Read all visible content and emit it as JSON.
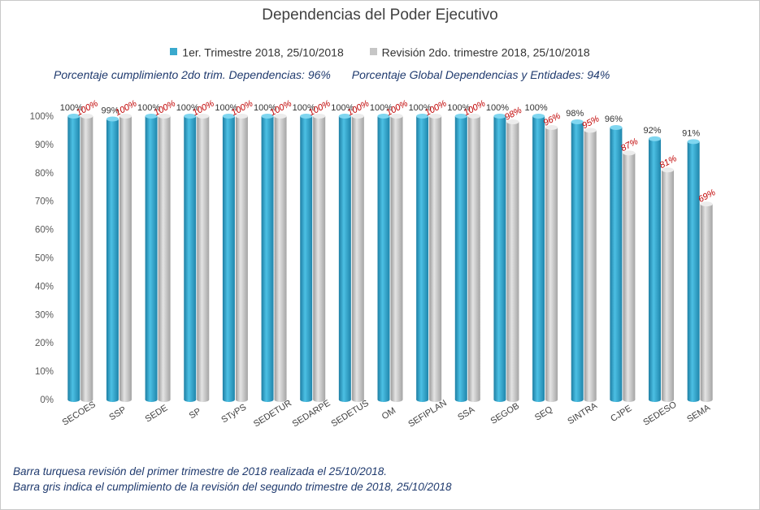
{
  "chart_data": {
    "type": "bar",
    "title": "Dependencias del Poder Ejecutivo",
    "categories": [
      "SECOES",
      "SSP",
      "SEDE",
      "SP",
      "STyPS",
      "SEDETUR",
      "SEDARPE",
      "SEDETUS",
      "OM",
      "SEFIPLAN",
      "SSA",
      "SEGOB",
      "SEQ",
      "SINTRA",
      "CJPE",
      "SEDESO",
      "SEMA"
    ],
    "series": [
      {
        "name": "1er. Trimestre 2018, 25/10/2018",
        "color": "#3aa9cd",
        "values": [
          100,
          99,
          100,
          100,
          100,
          100,
          100,
          100,
          100,
          100,
          100,
          100,
          100,
          98,
          96,
          92,
          91
        ],
        "labels": [
          "100%",
          "99%",
          "100%",
          "100%",
          "100%",
          "100%",
          "100%",
          "100%",
          "100%",
          "100%",
          "100%",
          "100%",
          "100%",
          "98%",
          "96%",
          "92%",
          "91%"
        ]
      },
      {
        "name": "Revisión 2do. trimestre 2018, 25/10/2018",
        "color": "#c6c6c6",
        "values": [
          100,
          100,
          100,
          100,
          100,
          100,
          100,
          100,
          100,
          100,
          100,
          98,
          96,
          95,
          87,
          81,
          69
        ],
        "labels": [
          "100%",
          "100%",
          "100%",
          "100%",
          "100%",
          "100%",
          "100%",
          "100%",
          "100%",
          "100%",
          "100%",
          "98%",
          "96%",
          "95%",
          "87%",
          "81%",
          "69%"
        ]
      }
    ],
    "ylim": [
      0,
      100
    ],
    "yticks": [
      "0%",
      "10%",
      "20%",
      "30%",
      "40%",
      "50%",
      "60%",
      "70%",
      "80%",
      "90%",
      "100%"
    ],
    "legend_position": "top",
    "grid": false
  },
  "stats": {
    "cumplimiento": "Porcentaje cumplimiento 2do trim. Dependencias: 96%",
    "global": "Porcentaje Global Dependencias y Entidades: 94%"
  },
  "notes": {
    "line1": "Barra turquesa revisión del primer trimestre de 2018 realizada el 25/10/2018.",
    "line2": "Barra gris indica el cumplimiento de la revisión del segundo trimestre de 2018, 25/10/2018"
  }
}
